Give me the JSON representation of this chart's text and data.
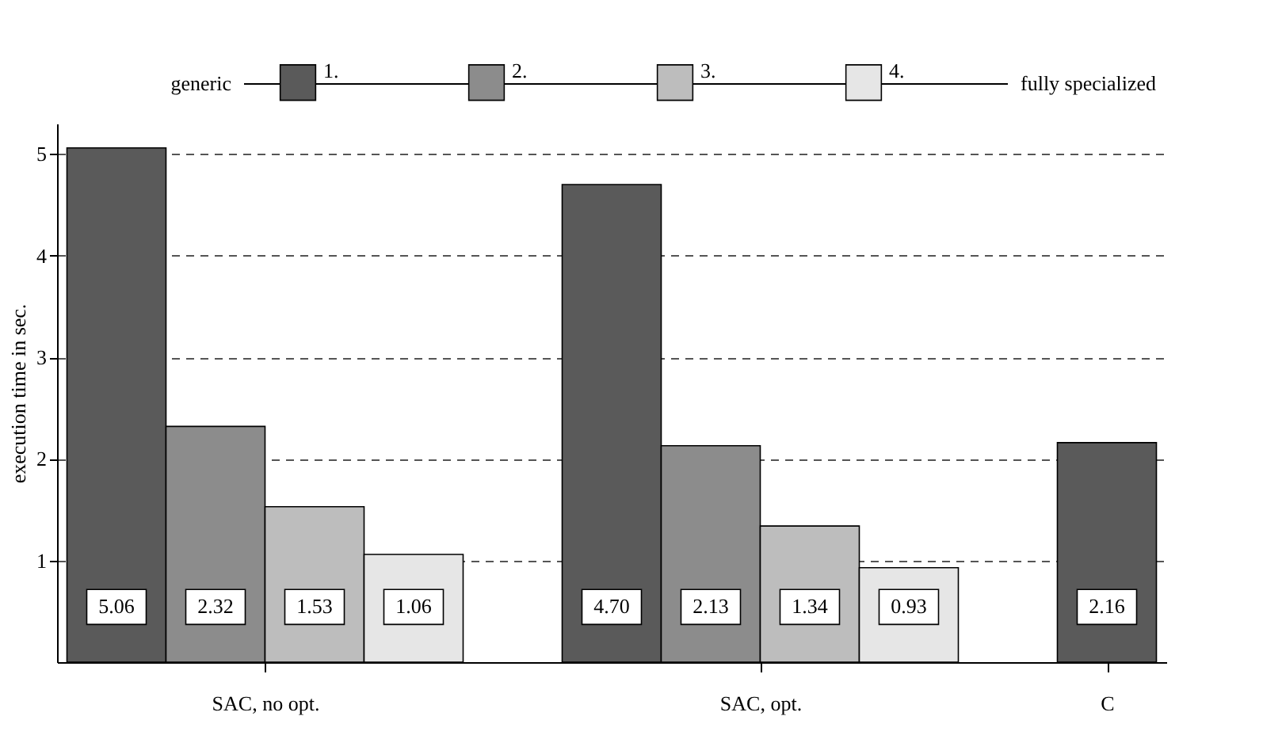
{
  "chart_data": {
    "type": "bar",
    "categories": [
      "SAC, no opt.",
      "SAC, opt.",
      "C"
    ],
    "series": [
      {
        "name": "1.",
        "color": "#5a5a5a",
        "values": [
          5.06,
          4.7,
          2.16
        ]
      },
      {
        "name": "2.",
        "color": "#8c8c8c",
        "values": [
          2.32,
          2.13,
          null
        ]
      },
      {
        "name": "3.",
        "color": "#bdbdbd",
        "values": [
          1.53,
          1.34,
          null
        ]
      },
      {
        "name": "4.",
        "color": "#e6e6e6",
        "values": [
          1.06,
          0.93,
          null
        ]
      }
    ],
    "ylabel": "execution time in sec.",
    "ylim": [
      0,
      5.3
    ],
    "yticks": [
      1,
      2,
      3,
      4,
      5
    ],
    "grid": "y",
    "legend": "top",
    "value_labels": [
      [
        "5.06",
        "4.70",
        "2.16"
      ],
      [
        "2.32",
        "2.13",
        null
      ],
      [
        "1.53",
        "1.34",
        null
      ],
      [
        "1.06",
        "0.93",
        null
      ]
    ],
    "annotations": [
      "generic",
      "fully specialized"
    ]
  }
}
